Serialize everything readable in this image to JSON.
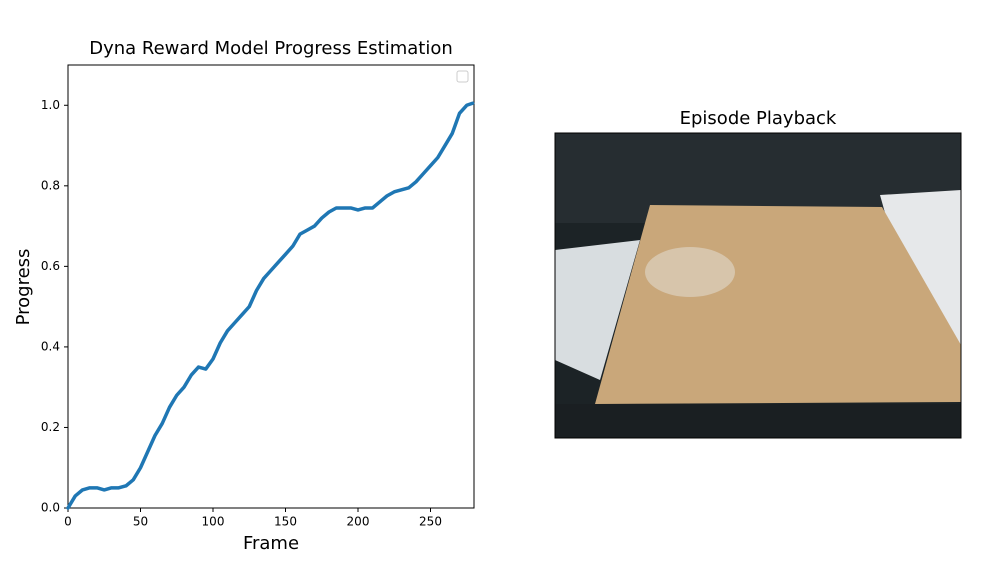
{
  "chart_data": [
    {
      "type": "line",
      "title": "Dyna Reward Model Progress Estimation",
      "xlabel": "Frame",
      "ylabel": "Progress",
      "x": [
        0,
        5,
        10,
        15,
        20,
        25,
        30,
        35,
        40,
        45,
        50,
        55,
        60,
        65,
        70,
        75,
        80,
        85,
        90,
        95,
        100,
        105,
        110,
        115,
        120,
        125,
        130,
        135,
        140,
        145,
        150,
        155,
        160,
        165,
        170,
        175,
        180,
        185,
        190,
        195,
        200,
        205,
        210,
        215,
        220,
        225,
        230,
        235,
        240,
        245,
        250,
        255,
        260,
        265,
        270,
        275,
        279
      ],
      "values": [
        0.0,
        0.03,
        0.045,
        0.05,
        0.05,
        0.045,
        0.05,
        0.05,
        0.055,
        0.07,
        0.1,
        0.14,
        0.18,
        0.21,
        0.25,
        0.28,
        0.3,
        0.33,
        0.35,
        0.345,
        0.37,
        0.41,
        0.44,
        0.46,
        0.48,
        0.5,
        0.54,
        0.57,
        0.59,
        0.61,
        0.63,
        0.65,
        0.68,
        0.69,
        0.7,
        0.72,
        0.735,
        0.745,
        0.745,
        0.745,
        0.74,
        0.745,
        0.745,
        0.76,
        0.775,
        0.785,
        0.79,
        0.795,
        0.81,
        0.83,
        0.85,
        0.87,
        0.9,
        0.93,
        0.98,
        1.0,
        1.005
      ],
      "color": "#1f77b4",
      "xlim": [
        0,
        280
      ],
      "ylim": [
        0,
        1.1
      ],
      "xticks": [
        0,
        50,
        100,
        150,
        200,
        250
      ],
      "yticks": [
        {
          "value": 0,
          "label": "0.0"
        },
        0.2,
        0.4,
        0.6,
        0.8,
        {
          "value": 1,
          "label": "1.0"
        }
      ]
    },
    {
      "type": "image",
      "title": "Episode Playback"
    }
  ]
}
